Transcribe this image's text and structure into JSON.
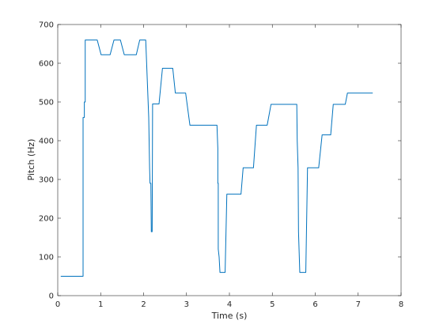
{
  "chart_data": {
    "type": "line",
    "title": "",
    "xlabel": "Time (s)",
    "ylabel": "Pitch (Hz)",
    "xlim": [
      0,
      8
    ],
    "ylim": [
      0,
      700
    ],
    "xticks": [
      "0",
      "1",
      "2",
      "3",
      "4",
      "5",
      "6",
      "7",
      "8"
    ],
    "yticks": [
      "0",
      "100",
      "200",
      "300",
      "400",
      "500",
      "600",
      "700"
    ],
    "grid": false,
    "line_color": "#0072BD",
    "series": [
      {
        "x": [
          0.07,
          0.59,
          0.59,
          0.62,
          0.62,
          0.64,
          0.64,
          0.92,
          1.01,
          1.22,
          1.31,
          1.46,
          1.55,
          1.83,
          1.91,
          2.05,
          2.12,
          2.14,
          2.15,
          2.17,
          2.18,
          2.2,
          2.21,
          2.36,
          2.44,
          2.68,
          2.74,
          2.98,
          3.08,
          3.69,
          3.71,
          3.73,
          3.73,
          3.74,
          3.74,
          3.76,
          3.78,
          3.9,
          3.94,
          4.27,
          4.32,
          4.56,
          4.63,
          4.88,
          4.97,
          5.57,
          5.58,
          5.6,
          5.61,
          5.64,
          5.66,
          5.78,
          5.82,
          6.08,
          6.16,
          6.36,
          6.42,
          6.7,
          6.75,
          7.34
        ],
        "y": [
          50,
          50,
          460,
          460,
          500,
          500,
          660,
          660,
          622,
          622,
          660,
          660,
          622,
          622,
          660,
          660,
          460,
          330,
          290,
          290,
          165,
          165,
          495,
          495,
          587,
          587,
          523,
          523,
          440,
          440,
          440,
          380,
          290,
          290,
          120,
          100,
          60,
          60,
          262,
          262,
          330,
          330,
          440,
          440,
          494,
          494,
          400,
          330,
          165,
          60,
          60,
          60,
          330,
          330,
          415,
          415,
          494,
          494,
          523,
          523
        ]
      }
    ]
  }
}
